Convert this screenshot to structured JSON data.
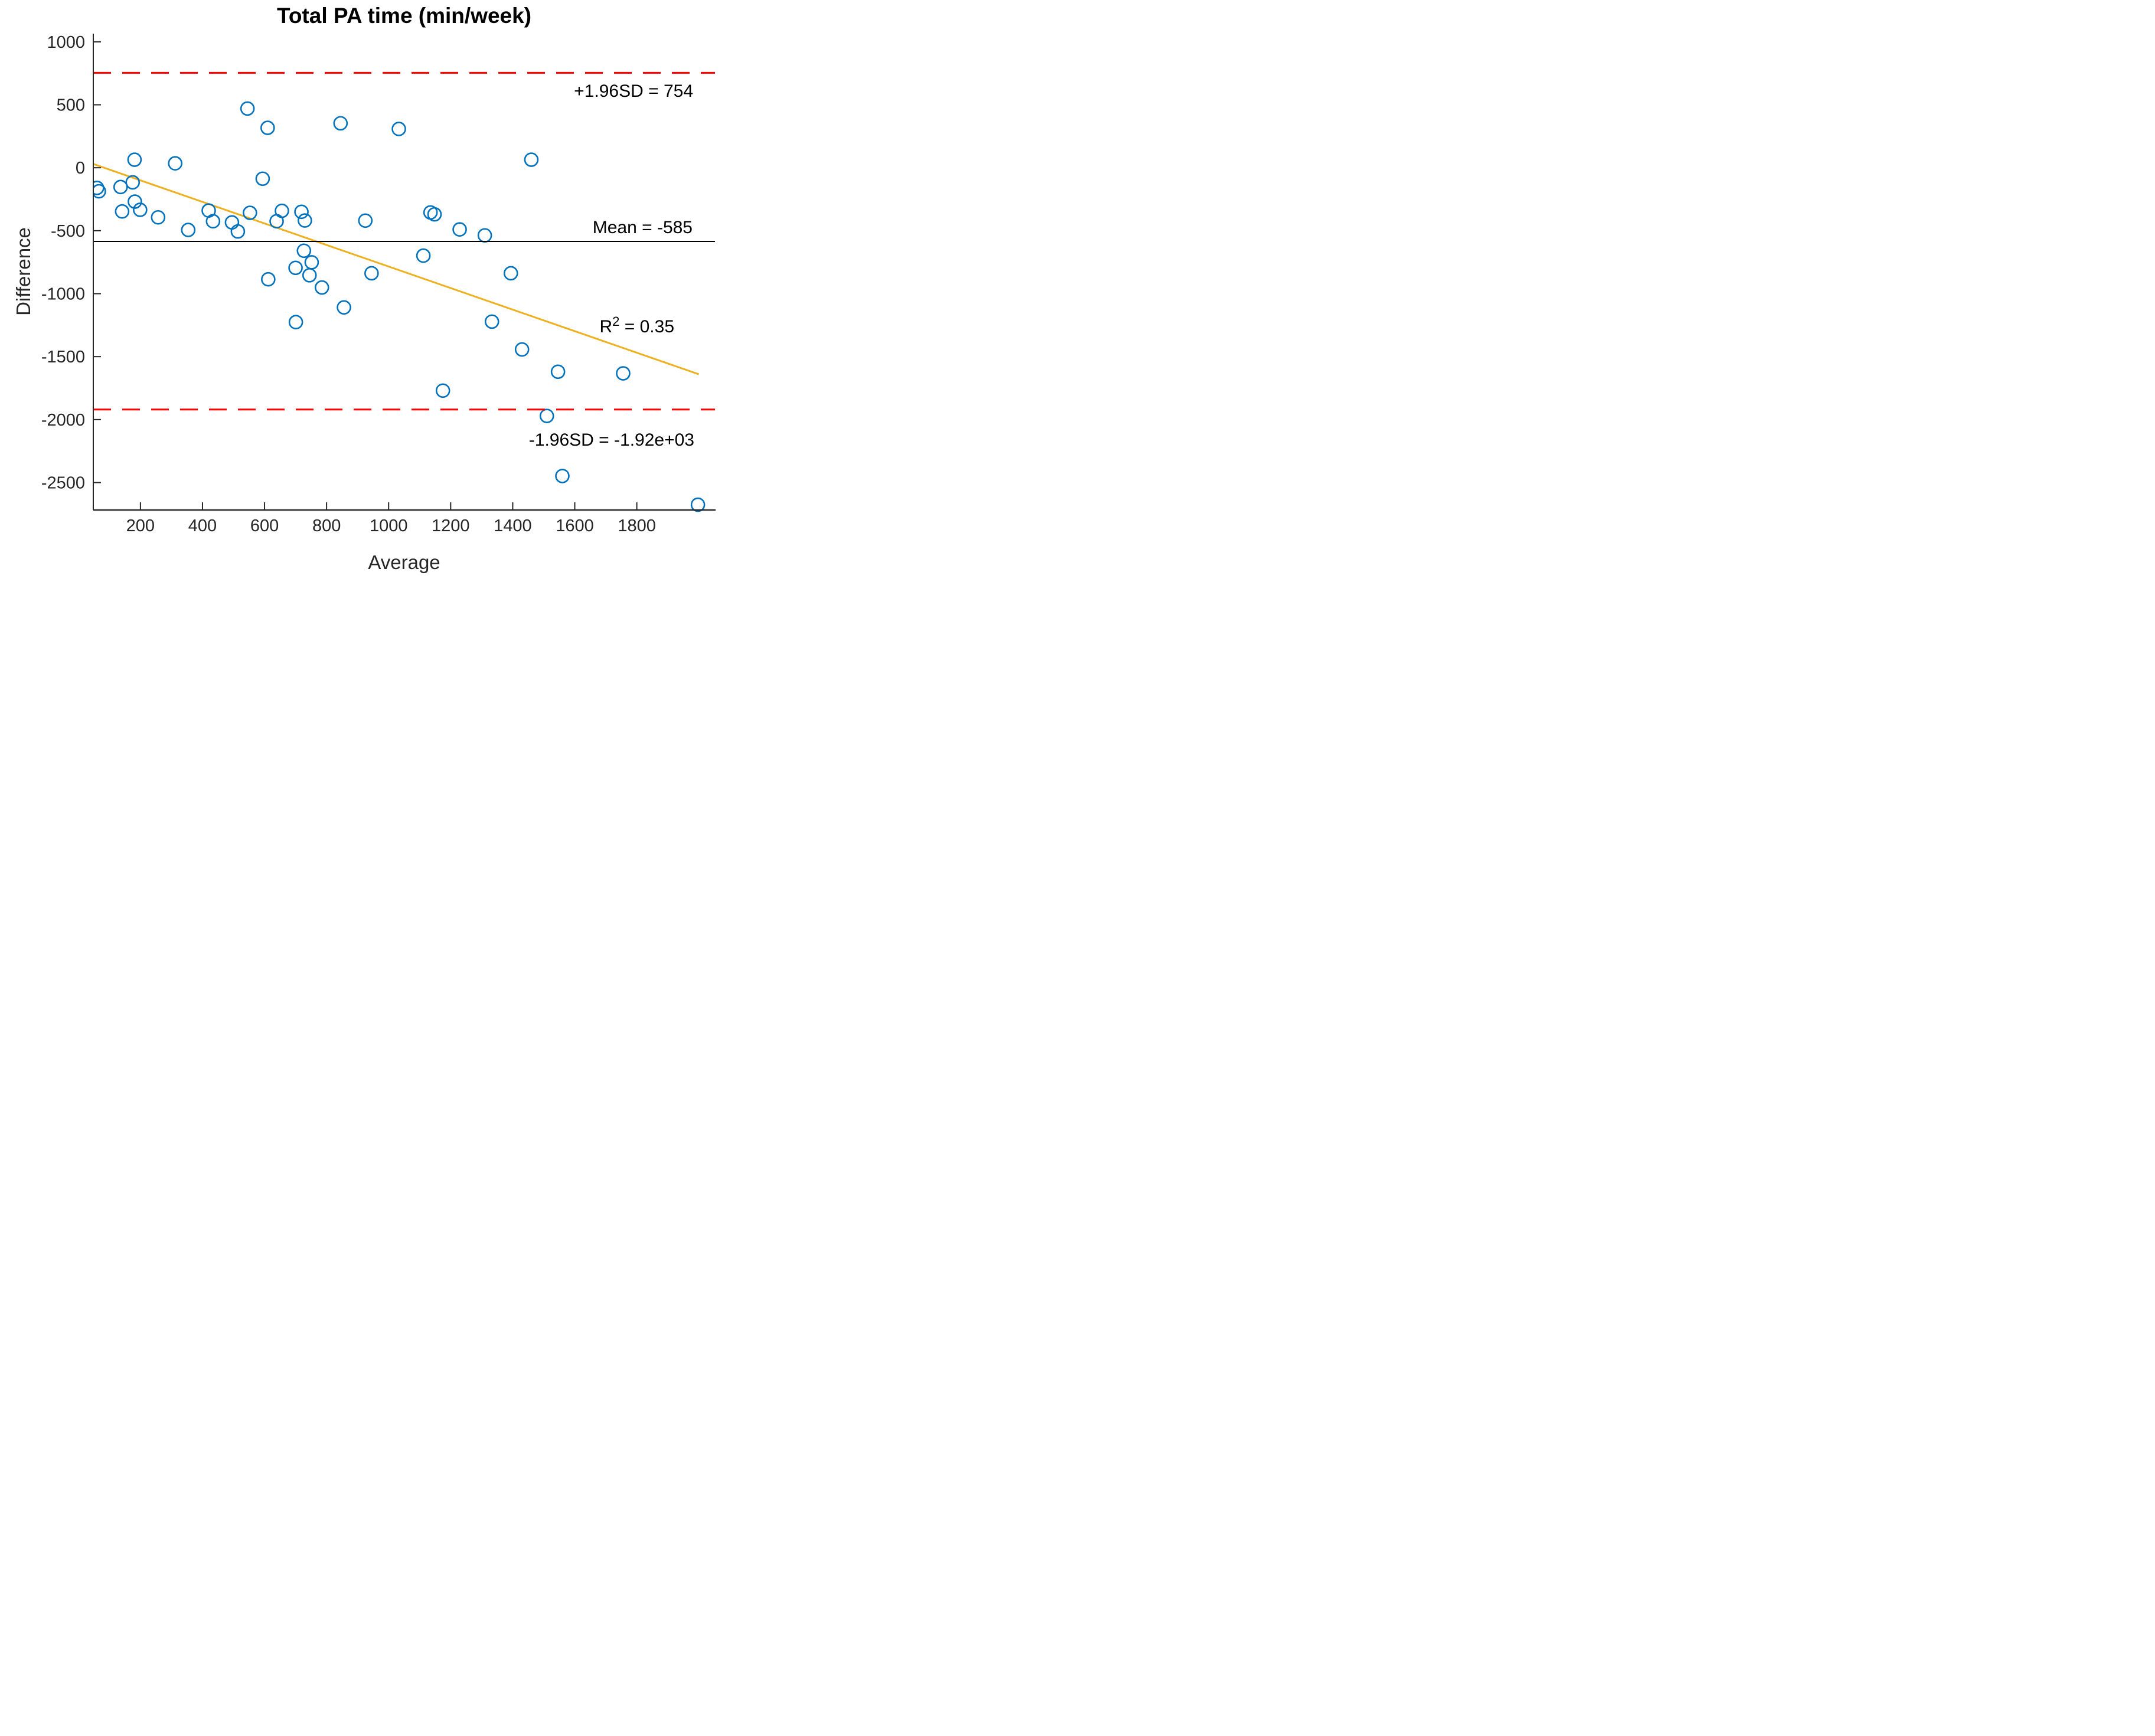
{
  "chart_data": {
    "type": "scatter",
    "title": "Total PA time (min/week)",
    "xlabel": "Average",
    "ylabel": "Difference",
    "xlim": [
      48,
      2052
    ],
    "ylim": [
      -2718,
      1065
    ],
    "xticks": [
      200,
      400,
      600,
      800,
      1000,
      1200,
      1400,
      1600,
      1800
    ],
    "yticks": [
      1000,
      500,
      0,
      -500,
      -1000,
      -1500,
      -2000,
      -2500
    ],
    "grid": false,
    "legend": "none",
    "colors": {
      "marker": "#0072BD",
      "trend": "#EDB120",
      "loa": "#FF0000",
      "mean_line": "#000000",
      "axis": "#262626"
    },
    "points": [
      [
        60,
        -160
      ],
      [
        66,
        -187
      ],
      [
        136,
        -153
      ],
      [
        141,
        -347
      ],
      [
        175,
        -116
      ],
      [
        181,
        64
      ],
      [
        182,
        -269
      ],
      [
        199,
        -334
      ],
      [
        257,
        -394
      ],
      [
        312,
        35
      ],
      [
        354,
        -494
      ],
      [
        420,
        -340
      ],
      [
        434,
        -425
      ],
      [
        495,
        -434
      ],
      [
        514,
        -506
      ],
      [
        545,
        470
      ],
      [
        553,
        -358
      ],
      [
        594,
        -87
      ],
      [
        610,
        317
      ],
      [
        612,
        -886
      ],
      [
        639,
        -425
      ],
      [
        656,
        -342
      ],
      [
        700,
        -795
      ],
      [
        701,
        -1226
      ],
      [
        719,
        -350
      ],
      [
        727,
        -659
      ],
      [
        730,
        -419
      ],
      [
        745,
        -854
      ],
      [
        752,
        -751
      ],
      [
        785,
        -951
      ],
      [
        845,
        353
      ],
      [
        856,
        -1109
      ],
      [
        925,
        -420
      ],
      [
        945,
        -838
      ],
      [
        1033,
        308
      ],
      [
        1112,
        -698
      ],
      [
        1135,
        -355
      ],
      [
        1148,
        -370
      ],
      [
        1175,
        -1770
      ],
      [
        1229,
        -490
      ],
      [
        1310,
        -537
      ],
      [
        1333,
        -1222
      ],
      [
        1394,
        -838
      ],
      [
        1430,
        -1443
      ],
      [
        1460,
        64
      ],
      [
        1510,
        -1971
      ],
      [
        1546,
        -1620
      ],
      [
        1560,
        -2448
      ],
      [
        1756,
        -1633
      ],
      [
        1997,
        -2676
      ]
    ],
    "ref_lines": [
      {
        "name": "upper_loa",
        "y": 754,
        "style": "dashed",
        "color": "#FF0000"
      },
      {
        "name": "mean",
        "y": -585,
        "style": "solid",
        "color": "#000000"
      },
      {
        "name": "lower_loa",
        "y": -1920,
        "style": "dashed",
        "color": "#FF0000"
      }
    ],
    "trend_line": {
      "x1": 48,
      "y1": 30,
      "x2": 2000,
      "y2": -1640,
      "color": "#EDB120"
    },
    "annotations": {
      "upper_loa": "+1.96SD = 754",
      "mean": "Mean = -585",
      "r2_base": "R",
      "r2_sup": "2",
      "r2_rest": " = 0.35",
      "lower_loa": "-1.96SD = -1.92e+03"
    }
  }
}
